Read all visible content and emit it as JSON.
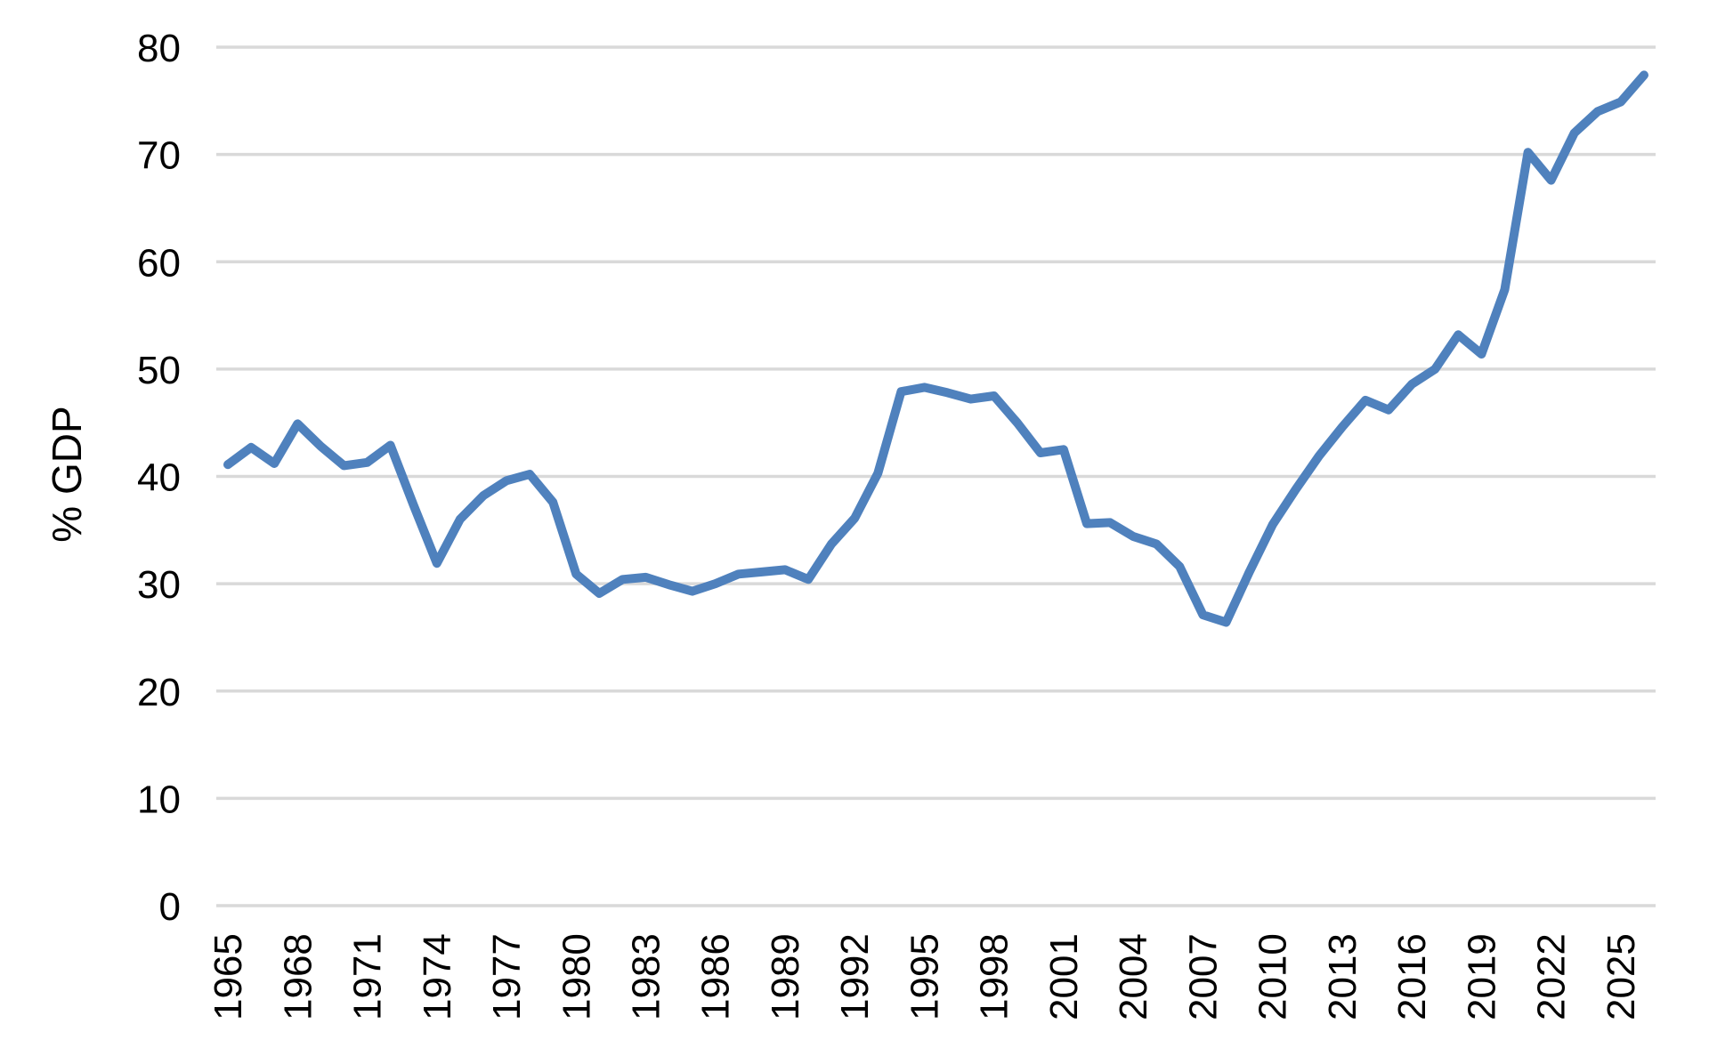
{
  "chart_data": {
    "type": "line",
    "title": "",
    "ylabel": "% GDP",
    "xlabel": "",
    "legend": "none",
    "grid": "horizontal",
    "ylim": [
      0,
      80
    ],
    "y_ticks": [
      0,
      10,
      20,
      30,
      40,
      50,
      60,
      70,
      80
    ],
    "x_tick_labels": [
      "1965",
      "1968",
      "1971",
      "1974",
      "1977",
      "1980",
      "1983",
      "1986",
      "1989",
      "1992",
      "1995",
      "1998",
      "2001",
      "2004",
      "2007",
      "2010",
      "2013",
      "2016",
      "2019",
      "2022",
      "2025"
    ],
    "x": [
      1965,
      1966,
      1967,
      1968,
      1969,
      1970,
      1971,
      1972,
      1973,
      1974,
      1975,
      1976,
      1977,
      1978,
      1979,
      1980,
      1981,
      1982,
      1983,
      1984,
      1985,
      1986,
      1987,
      1988,
      1989,
      1990,
      1991,
      1992,
      1993,
      1994,
      1995,
      1996,
      1997,
      1998,
      1999,
      2000,
      2001,
      2002,
      2003,
      2004,
      2005,
      2006,
      2007,
      2008,
      2009,
      2010,
      2011,
      2012,
      2013,
      2014,
      2015,
      2016,
      2017,
      2018,
      2019,
      2020,
      2021,
      2022,
      2023,
      2024,
      2025,
      2026
    ],
    "series": [
      {
        "name": "% GDP",
        "values": [
          41.1,
          42.7,
          41.2,
          44.9,
          42.8,
          41.0,
          41.3,
          42.9,
          37.3,
          31.9,
          36.0,
          38.2,
          39.6,
          40.2,
          37.6,
          30.9,
          29.1,
          30.4,
          30.6,
          29.9,
          29.3,
          30.0,
          30.9,
          31.1,
          31.3,
          30.4,
          33.7,
          36.1,
          40.3,
          47.9,
          48.3,
          47.8,
          47.2,
          47.5,
          45.0,
          42.2,
          42.5,
          35.6,
          35.7,
          34.4,
          33.7,
          31.6,
          27.1,
          26.4,
          31.1,
          35.5,
          38.8,
          41.9,
          44.6,
          47.1,
          46.2,
          48.6,
          50.0,
          53.2,
          51.4,
          57.4,
          70.2,
          67.6,
          72.0,
          74.0,
          74.9,
          77.4
        ]
      }
    ],
    "colors": {
      "line": "#4F81BD",
      "gridline": "#D9D9D9",
      "text": "#000000",
      "background": "#FFFFFF"
    }
  }
}
